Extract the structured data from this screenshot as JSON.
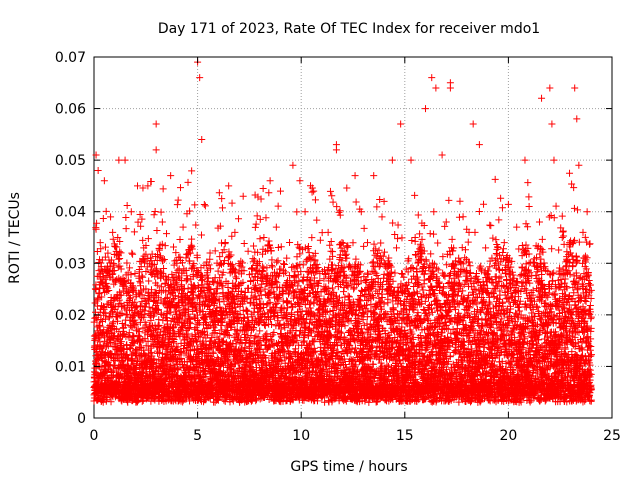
{
  "chart_data": {
    "type": "scatter",
    "title": "Day 171 of 2023, Rate Of TEC Index for receiver mdo1",
    "xlabel": "GPS time / hours",
    "ylabel": "ROTI / TECUs",
    "xlim": [
      0,
      25
    ],
    "ylim": [
      0,
      0.07
    ],
    "xticks": [
      "0",
      "5",
      "10",
      "15",
      "20",
      "25"
    ],
    "yticks": [
      "0",
      "0.01",
      "0.02",
      "0.03",
      "0.04",
      "0.05",
      "0.06",
      "0.07"
    ],
    "grid": true,
    "legend": "none",
    "marker": "plus",
    "series": [
      {
        "color": "#ff0000",
        "points": [
          [
            0.1,
            0.051
          ],
          [
            0.2,
            0.048
          ],
          [
            0.5,
            0.046
          ],
          [
            0.8,
            0.039
          ],
          [
            1.2,
            0.05
          ],
          [
            1.5,
            0.05
          ],
          [
            2.1,
            0.045
          ],
          [
            2.6,
            0.045
          ],
          [
            3.0,
            0.057
          ],
          [
            3.0,
            0.052
          ],
          [
            3.7,
            0.047
          ],
          [
            4.3,
            0.037
          ],
          [
            5.0,
            0.069
          ],
          [
            5.1,
            0.066
          ],
          [
            5.2,
            0.054
          ],
          [
            6.5,
            0.045
          ],
          [
            7.2,
            0.043
          ],
          [
            8.5,
            0.046
          ],
          [
            9.0,
            0.044
          ],
          [
            9.6,
            0.049
          ],
          [
            10.6,
            0.044
          ],
          [
            11.7,
            0.053
          ],
          [
            11.7,
            0.052
          ],
          [
            12.6,
            0.047
          ],
          [
            13.5,
            0.047
          ],
          [
            14.0,
            0.042
          ],
          [
            14.4,
            0.05
          ],
          [
            14.8,
            0.057
          ],
          [
            15.3,
            0.05
          ],
          [
            16.0,
            0.06
          ],
          [
            16.3,
            0.066
          ],
          [
            16.5,
            0.064
          ],
          [
            16.8,
            0.051
          ],
          [
            17.2,
            0.065
          ],
          [
            17.2,
            0.064
          ],
          [
            18.3,
            0.057
          ],
          [
            18.6,
            0.053
          ],
          [
            20.8,
            0.05
          ],
          [
            21.6,
            0.062
          ],
          [
            22.0,
            0.064
          ],
          [
            22.1,
            0.057
          ],
          [
            22.2,
            0.05
          ],
          [
            23.2,
            0.064
          ],
          [
            23.3,
            0.058
          ],
          [
            23.4,
            0.049
          ],
          [
            0.3,
            0.034
          ],
          [
            0.9,
            0.036
          ],
          [
            1.8,
            0.04
          ],
          [
            2.4,
            0.033
          ],
          [
            3.3,
            0.038
          ],
          [
            4.0,
            0.03
          ],
          [
            5.6,
            0.032
          ],
          [
            6.1,
            0.03
          ],
          [
            6.8,
            0.036
          ],
          [
            7.6,
            0.029
          ],
          [
            8.2,
            0.035
          ],
          [
            8.8,
            0.037
          ],
          [
            9.3,
            0.031
          ],
          [
            10.2,
            0.033
          ],
          [
            10.9,
            0.028
          ],
          [
            11.3,
            0.036
          ],
          [
            12.2,
            0.031
          ],
          [
            12.9,
            0.04
          ],
          [
            13.2,
            0.034
          ],
          [
            13.9,
            0.039
          ],
          [
            14.6,
            0.033
          ],
          [
            15.5,
            0.035
          ],
          [
            15.9,
            0.029
          ],
          [
            16.4,
            0.04
          ],
          [
            17.0,
            0.038
          ],
          [
            17.6,
            0.031
          ],
          [
            18.1,
            0.036
          ],
          [
            18.9,
            0.033
          ],
          [
            19.4,
            0.03
          ],
          [
            19.8,
            0.034
          ],
          [
            20.4,
            0.037
          ],
          [
            21.0,
            0.041
          ],
          [
            21.5,
            0.038
          ],
          [
            22.6,
            0.035
          ],
          [
            23.0,
            0.032
          ],
          [
            23.6,
            0.036
          ],
          [
            23.8,
            0.04
          ]
        ]
      }
    ]
  }
}
